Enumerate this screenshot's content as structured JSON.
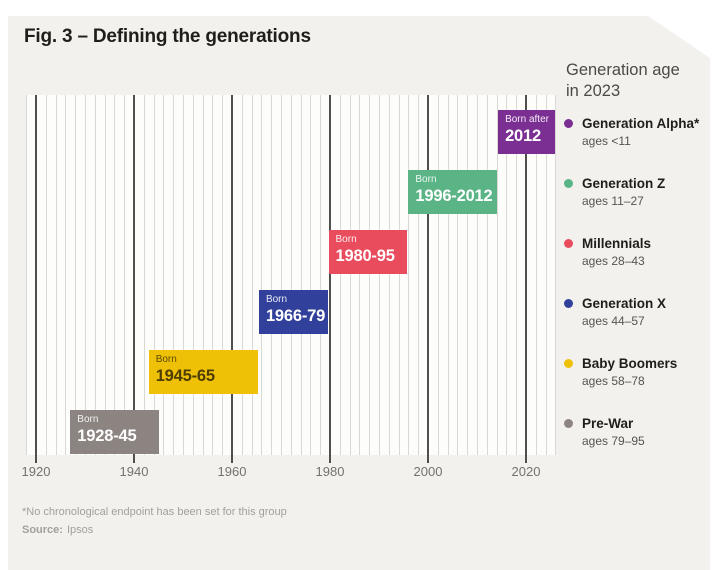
{
  "title": {
    "prefix": "Fig. 3 –",
    "text": "Defining the generations"
  },
  "legend": {
    "header_line1": "Generation age",
    "header_line2": "in 2023"
  },
  "chart_data": {
    "type": "bar",
    "variant": "horizontal-timeline",
    "title": "Fig. 3 – Defining the generations",
    "x_axis": {
      "min": 1918,
      "max": 2026,
      "minor_step": 2,
      "major_step": 20,
      "ticks": [
        1920,
        1940,
        1960,
        1980,
        2000,
        2020
      ],
      "tick_labels": [
        "1920",
        "1940",
        "1960",
        "1980",
        "2000",
        "2020"
      ],
      "grid": "on"
    },
    "legend_position": "right",
    "bars": [
      {
        "name": "Generation Alpha*",
        "ages_2023": "ages <11",
        "born_label_top": "Born after",
        "born_label_years": "2012",
        "born_start": 2012,
        "born_end": null,
        "draw_start": 2014.3,
        "draw_end": 2026,
        "row": 0,
        "color": "#7b2f92",
        "text_color": "#ffffff"
      },
      {
        "name": "Generation Z",
        "ages_2023": "ages 11–27",
        "born_label_top": "Born",
        "born_label_years": "1996-2012",
        "born_start": 1996,
        "born_end": 2012,
        "draw_start": 1996,
        "draw_end": 2014,
        "row": 1,
        "color": "#5bb485",
        "text_color": "#ffffff"
      },
      {
        "name": "Millennials",
        "ages_2023": "ages 28–43",
        "born_label_top": "Born",
        "born_label_years": "1980-95",
        "born_start": 1980,
        "born_end": 1995,
        "draw_start": 1979.7,
        "draw_end": 1995.7,
        "row": 2,
        "color": "#e94c5d",
        "text_color": "#ffffff"
      },
      {
        "name": "Generation X",
        "ages_2023": "ages 44–57",
        "born_label_top": "Born",
        "born_label_years": "1966-79",
        "born_start": 1966,
        "born_end": 1979,
        "draw_start": 1965.5,
        "draw_end": 1979.5,
        "row": 3,
        "color": "#31409a",
        "text_color": "#ffffff"
      },
      {
        "name": "Baby Boomers",
        "ages_2023": "ages 58–78",
        "born_label_top": "Born",
        "born_label_years": "1945-65",
        "born_start": 1945,
        "born_end": 1965,
        "draw_start": 1943,
        "draw_end": 1965.3,
        "row": 4,
        "color": "#eec107",
        "text_color": "#4d3d02"
      },
      {
        "name": "Pre-War",
        "ages_2023": "ages 79–95",
        "born_label_top": "Born",
        "born_label_years": "1928-45",
        "born_start": 1928,
        "born_end": 1945,
        "draw_start": 1927,
        "draw_end": 1945.2,
        "row": 5,
        "color": "#8c8480",
        "text_color": "#ffffff"
      }
    ],
    "footnote": "*No chronological endpoint has been set for this group",
    "source_label": "Source:",
    "source_value": "Ipsos"
  }
}
